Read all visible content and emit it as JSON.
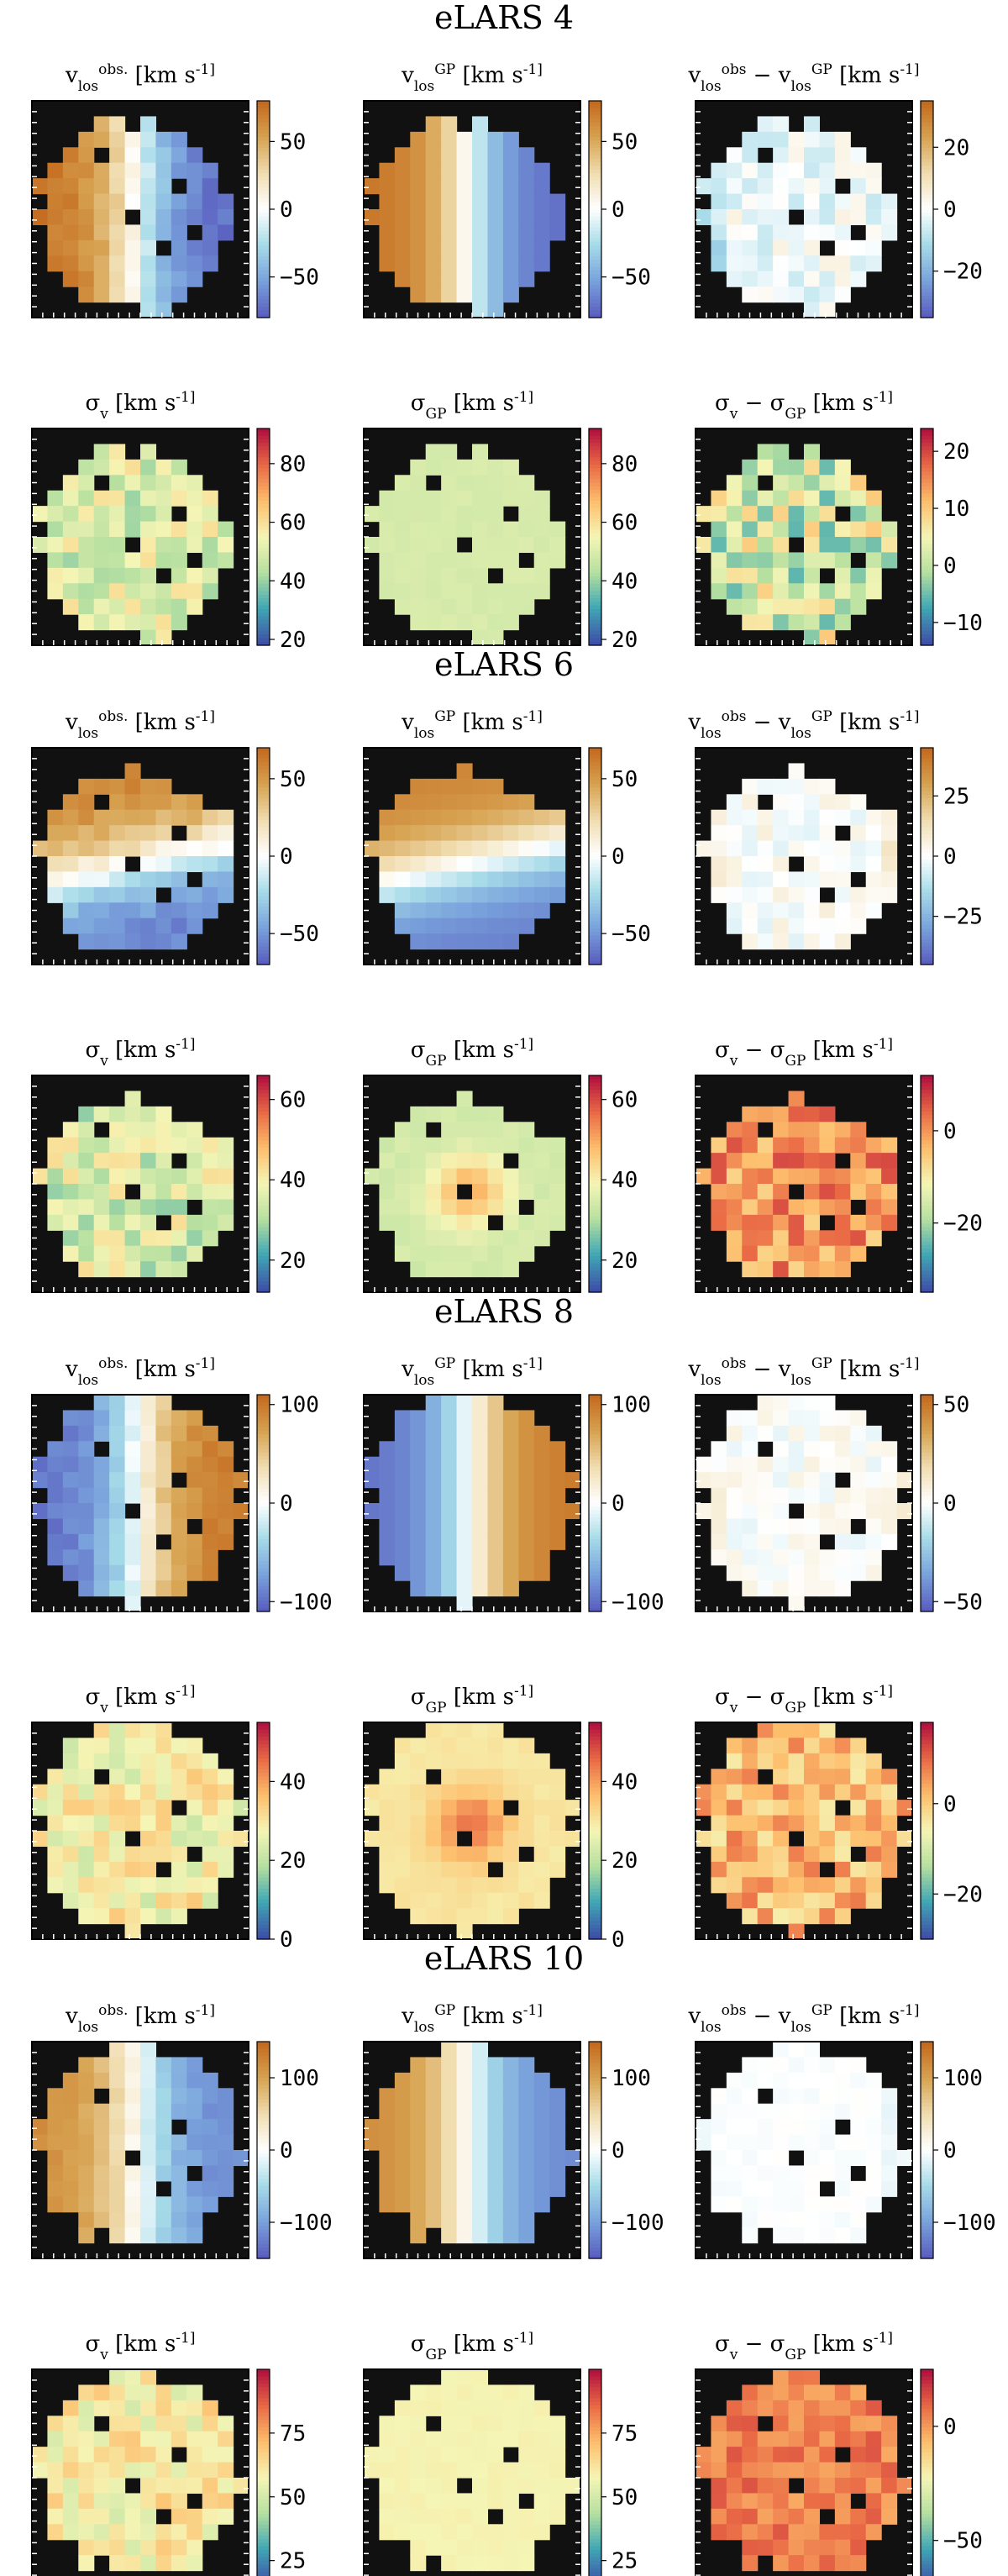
{
  "colormaps": {
    "diverging": [
      "#5a5fbf",
      "#7aa3dc",
      "#a6dbe8",
      "#ffffff",
      "#f0ddb0",
      "#d7a352",
      "#c46a1e"
    ],
    "spectral": [
      "#3e4fa8",
      "#40a7b4",
      "#b6e0a0",
      "#f5f5b5",
      "#fdbe6c",
      "#e96a45",
      "#b3113e"
    ]
  },
  "panel_frame_color": "#000000",
  "masked_color": "#111111",
  "chart_data": [
    {
      "title": "eLARS 4",
      "type": "heatmap",
      "rows": [
        {
          "panels": [
            {
              "label": "v_los^obs. [km s^-1]",
              "colorbar": {
                "min": -80,
                "max": 80,
                "ticks": [
                  50,
                  0,
                  -50
                ]
              },
              "cmap": "diverging",
              "pattern": "rotation",
              "amplitude": 75,
              "noise": 6
            },
            {
              "label": "v_los^GP [km s^-1]",
              "colorbar": {
                "min": -80,
                "max": 80,
                "ticks": [
                  50,
                  0,
                  -50
                ]
              },
              "cmap": "diverging",
              "pattern": "rotation",
              "amplitude": 75,
              "noise": 0
            },
            {
              "label": "v_los^obs − v_los^GP [km s^-1]",
              "colorbar": {
                "min": -35,
                "max": 35,
                "ticks": [
                  20,
                  0,
                  -20
                ]
              },
              "cmap": "diverging",
              "pattern": "residual",
              "amplitude": -8,
              "noise": 6
            }
          ]
        },
        {
          "panels": [
            {
              "label": "σ_v [km s^-1]",
              "colorbar": {
                "min": 18,
                "max": 92,
                "ticks": [
                  80,
                  60,
                  40,
                  20
                ]
              },
              "cmap": "spectral",
              "pattern": "flat",
              "amplitude": 50,
              "noise": 10
            },
            {
              "label": "σ_GP [km s^-1]",
              "colorbar": {
                "min": 18,
                "max": 92,
                "ticks": [
                  80,
                  60,
                  40,
                  20
                ]
              },
              "cmap": "spectral",
              "pattern": "flat",
              "amplitude": 49,
              "noise": 1
            },
            {
              "label": "σ_v − σ_GP [km s^-1]",
              "colorbar": {
                "min": -14,
                "max": 24,
                "ticks": [
                  20,
                  10,
                  0,
                  -10
                ]
              },
              "cmap": "spectral",
              "pattern": "flat",
              "amplitude": 2,
              "noise": 8
            }
          ]
        }
      ]
    },
    {
      "title": "eLARS 6",
      "type": "heatmap",
      "rows": [
        {
          "panels": [
            {
              "label": "v_los^obs. [km s^-1]",
              "colorbar": {
                "min": -70,
                "max": 70,
                "ticks": [
                  50,
                  0,
                  -50
                ]
              },
              "cmap": "diverging",
              "pattern": "rotation_v",
              "amplitude": 60,
              "noise": 6
            },
            {
              "label": "v_los^GP [km s^-1]",
              "colorbar": {
                "min": -70,
                "max": 70,
                "ticks": [
                  50,
                  0,
                  -50
                ]
              },
              "cmap": "diverging",
              "pattern": "rotation_v",
              "amplitude": 60,
              "noise": 0
            },
            {
              "label": "v_los^obs − v_los^GP [km s^-1]",
              "colorbar": {
                "min": -45,
                "max": 45,
                "ticks": [
                  25,
                  0,
                  -25
                ]
              },
              "cmap": "diverging",
              "pattern": "residual",
              "amplitude": 5,
              "noise": 6
            }
          ]
        },
        {
          "panels": [
            {
              "label": "σ_v [km s^-1]",
              "colorbar": {
                "min": 12,
                "max": 66,
                "ticks": [
                  60,
                  40,
                  20
                ]
              },
              "cmap": "spectral",
              "pattern": "flat",
              "amplitude": 35,
              "noise": 8
            },
            {
              "label": "σ_GP [km s^-1]",
              "colorbar": {
                "min": 12,
                "max": 66,
                "ticks": [
                  60,
                  40,
                  20
                ]
              },
              "cmap": "spectral",
              "pattern": "peak",
              "amplitude": 34,
              "noise": 1
            },
            {
              "label": "σ_v − σ_GP [km s^-1]",
              "colorbar": {
                "min": -35,
                "max": 12,
                "ticks": [
                  0,
                  -20
                ]
              },
              "cmap": "spectral",
              "pattern": "flat",
              "amplitude": 0,
              "noise": 7
            }
          ]
        }
      ]
    },
    {
      "title": "eLARS 8",
      "type": "heatmap",
      "rows": [
        {
          "panels": [
            {
              "label": "v_los^obs. [km s^-1]",
              "colorbar": {
                "min": -110,
                "max": 110,
                "ticks": [
                  100,
                  0,
                  -100
                ]
              },
              "cmap": "diverging",
              "pattern": "rotation",
              "amplitude": -100,
              "noise": 8
            },
            {
              "label": "v_los^GP [km s^-1]",
              "colorbar": {
                "min": -110,
                "max": 110,
                "ticks": [
                  100,
                  0,
                  -100
                ]
              },
              "cmap": "diverging",
              "pattern": "rotation",
              "amplitude": -100,
              "noise": 0
            },
            {
              "label": "v_los^obs − v_los^GP [km s^-1]",
              "colorbar": {
                "min": -55,
                "max": 55,
                "ticks": [
                  50,
                  0,
                  -50
                ]
              },
              "cmap": "diverging",
              "pattern": "residual",
              "amplitude": 5,
              "noise": 6
            }
          ]
        },
        {
          "panels": [
            {
              "label": "σ_v [km s^-1]",
              "colorbar": {
                "min": 0,
                "max": 55,
                "ticks": [
                  40,
                  20,
                  0
                ]
              },
              "cmap": "spectral",
              "pattern": "flat",
              "amplitude": 28,
              "noise": 7
            },
            {
              "label": "σ_GP [km s^-1]",
              "colorbar": {
                "min": 0,
                "max": 55,
                "ticks": [
                  40,
                  20,
                  0
                ]
              },
              "cmap": "spectral",
              "pattern": "peak",
              "amplitude": 30,
              "noise": 1
            },
            {
              "label": "σ_v − σ_GP [km s^-1]",
              "colorbar": {
                "min": -30,
                "max": 18,
                "ticks": [
                  0,
                  -20
                ]
              },
              "cmap": "spectral",
              "pattern": "flat",
              "amplitude": 2,
              "noise": 7
            }
          ]
        }
      ]
    },
    {
      "title": "eLARS 10",
      "type": "heatmap",
      "rows": [
        {
          "panels": [
            {
              "label": "v_los^obs. [km s^-1]",
              "colorbar": {
                "min": -150,
                "max": 150,
                "ticks": [
                  100,
                  0,
                  -100
                ]
              },
              "cmap": "diverging",
              "pattern": "rotation",
              "amplitude": 120,
              "noise": 8
            },
            {
              "label": "v_los^GP [km s^-1]",
              "colorbar": {
                "min": -150,
                "max": 150,
                "ticks": [
                  100,
                  0,
                  -100
                ]
              },
              "cmap": "diverging",
              "pattern": "rotation",
              "amplitude": 120,
              "noise": 0
            },
            {
              "label": "v_los^obs − v_los^GP [km s^-1]",
              "colorbar": {
                "min": -150,
                "max": 150,
                "ticks": [
                  100,
                  0,
                  -100
                ]
              },
              "cmap": "diverging",
              "pattern": "residual",
              "amplitude": -10,
              "noise": 4
            }
          ]
        },
        {
          "panels": [
            {
              "label": "σ_v [km s^-1]",
              "colorbar": {
                "min": 15,
                "max": 100,
                "ticks": [
                  75,
                  50,
                  25
                ]
              },
              "cmap": "spectral",
              "pattern": "flat",
              "amplitude": 60,
              "noise": 10
            },
            {
              "label": "σ_GP [km s^-1]",
              "colorbar": {
                "min": 15,
                "max": 100,
                "ticks": [
                  75,
                  50,
                  25
                ]
              },
              "cmap": "spectral",
              "pattern": "flat",
              "amplitude": 58,
              "noise": 1
            },
            {
              "label": "σ_v − σ_GP [km s^-1]",
              "colorbar": {
                "min": -70,
                "max": 25,
                "ticks": [
                  0,
                  -50
                ]
              },
              "cmap": "spectral",
              "pattern": "flat",
              "amplitude": 5,
              "noise": 8
            }
          ]
        }
      ]
    }
  ]
}
